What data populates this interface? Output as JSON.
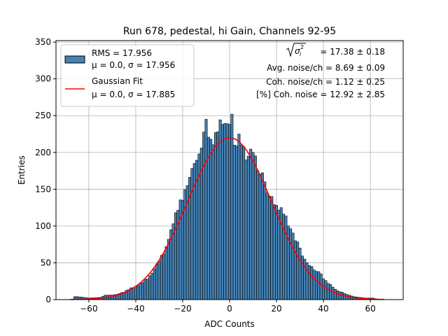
{
  "chart_data": {
    "type": "bar",
    "title": "Run 678, pedestal, hi Gain, Channels 92-95",
    "xlabel": "ADC Counts",
    "ylabel": "Entries",
    "xlim": [
      -74,
      74
    ],
    "ylim": [
      0,
      352
    ],
    "grid": true,
    "xticks": [
      -60,
      -40,
      -20,
      0,
      20,
      40,
      60
    ],
    "yticks": [
      0,
      50,
      100,
      150,
      200,
      250,
      300,
      350
    ],
    "bin_width": 1,
    "bins_start": -66,
    "bins_end": 66,
    "histogram_peak_points": [
      {
        "x": -65,
        "y": 4
      },
      {
        "x": -60,
        "y": 2
      },
      {
        "x": -55,
        "y": 3
      },
      {
        "x": -53,
        "y": 6
      },
      {
        "x": -50,
        "y": 6
      },
      {
        "x": -48,
        "y": 7
      },
      {
        "x": -45,
        "y": 10
      },
      {
        "x": -42,
        "y": 16
      },
      {
        "x": -40,
        "y": 18
      },
      {
        "x": -38,
        "y": 22
      },
      {
        "x": -35,
        "y": 28
      },
      {
        "x": -33,
        "y": 36
      },
      {
        "x": -30,
        "y": 52
      },
      {
        "x": -28,
        "y": 62
      },
      {
        "x": -25,
        "y": 95
      },
      {
        "x": -23,
        "y": 118
      },
      {
        "x": -20,
        "y": 135
      },
      {
        "x": -18,
        "y": 155
      },
      {
        "x": -15,
        "y": 185
      },
      {
        "x": -13,
        "y": 198
      },
      {
        "x": -10,
        "y": 245
      },
      {
        "x": -8,
        "y": 218
      },
      {
        "x": -5,
        "y": 228
      },
      {
        "x": -3,
        "y": 238
      },
      {
        "x": 0,
        "y": 238
      },
      {
        "x": 1,
        "y": 252
      },
      {
        "x": 2,
        "y": 210
      },
      {
        "x": 4,
        "y": 225
      },
      {
        "x": 6,
        "y": 208
      },
      {
        "x": 8,
        "y": 195
      },
      {
        "x": 10,
        "y": 200
      },
      {
        "x": 12,
        "y": 175
      },
      {
        "x": 15,
        "y": 160
      },
      {
        "x": 18,
        "y": 140
      },
      {
        "x": 20,
        "y": 128
      },
      {
        "x": 22,
        "y": 125
      },
      {
        "x": 25,
        "y": 100
      },
      {
        "x": 28,
        "y": 80
      },
      {
        "x": 30,
        "y": 70
      },
      {
        "x": 32,
        "y": 55
      },
      {
        "x": 35,
        "y": 45
      },
      {
        "x": 38,
        "y": 38
      },
      {
        "x": 40,
        "y": 28
      },
      {
        "x": 42,
        "y": 22
      },
      {
        "x": 45,
        "y": 14
      },
      {
        "x": 48,
        "y": 10
      },
      {
        "x": 50,
        "y": 7
      },
      {
        "x": 53,
        "y": 4
      },
      {
        "x": 55,
        "y": 3
      },
      {
        "x": 58,
        "y": 2
      },
      {
        "x": 61,
        "y": 2
      },
      {
        "x": 64,
        "y": 0
      }
    ],
    "series": [
      {
        "name": "RMS = 17.956",
        "stats": "μ = 0.0, σ = 17.956",
        "kind": "histogram",
        "color": "#4682b4",
        "edge_color": "#000000"
      },
      {
        "name": "Gaussian Fit",
        "stats": "μ = 0.0, σ = 17.885",
        "kind": "line",
        "color": "#ff0000",
        "amplitude": 220,
        "mean": 0.0,
        "sigma": 17.885,
        "x_range": [
          -68,
          66
        ]
      }
    ],
    "legend_position": "upper left",
    "annotations": {
      "sigma_expr": "= 17.38 ± 0.18",
      "avg_noise": "Avg. noise/ch = 8.69 ± 0.09",
      "coh_noise": "Coh. noise/ch = 1.12 ± 0.25",
      "coh_noise_pct": "[%] Coh. noise = 12.92 ± 2.85"
    }
  },
  "colors": {
    "hist_fill": "#4682b4",
    "fit_line": "#ff0000",
    "grid": "#b0b0b0"
  }
}
